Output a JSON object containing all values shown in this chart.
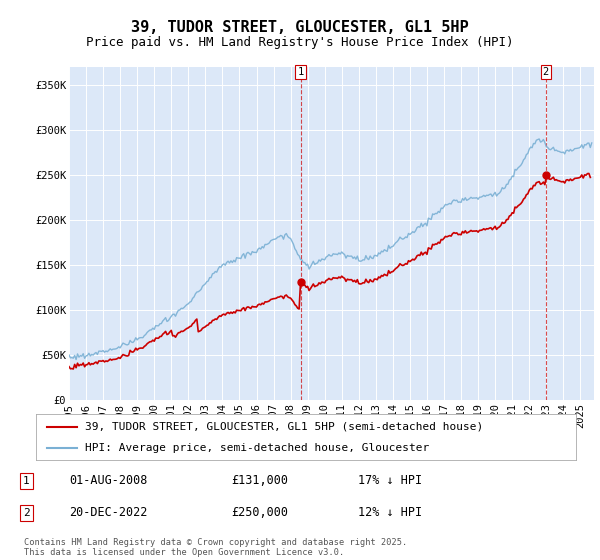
{
  "title": "39, TUDOR STREET, GLOUCESTER, GL1 5HP",
  "subtitle": "Price paid vs. HM Land Registry's House Price Index (HPI)",
  "plot_bg_color": "#dce8f8",
  "ylim": [
    0,
    370000
  ],
  "yticks": [
    0,
    50000,
    100000,
    150000,
    200000,
    250000,
    300000,
    350000
  ],
  "ytick_labels": [
    "£0",
    "£50K",
    "£100K",
    "£150K",
    "£200K",
    "£250K",
    "£300K",
    "£350K"
  ],
  "xlim_start": 1995.0,
  "xlim_end": 2025.8,
  "xticks": [
    1995,
    1996,
    1997,
    1998,
    1999,
    2000,
    2001,
    2002,
    2003,
    2004,
    2005,
    2006,
    2007,
    2008,
    2009,
    2010,
    2011,
    2012,
    2013,
    2014,
    2015,
    2016,
    2017,
    2018,
    2019,
    2020,
    2021,
    2022,
    2023,
    2024,
    2025
  ],
  "hpi_color": "#7ab0d4",
  "price_color": "#cc0000",
  "marker1_x": 2008.583,
  "marker1_y": 131000,
  "marker1_label": "1",
  "marker2_x": 2022.97,
  "marker2_y": 250000,
  "marker2_label": "2",
  "annotation1": [
    "01-AUG-2008",
    "£131,000",
    "17% ↓ HPI"
  ],
  "annotation2": [
    "20-DEC-2022",
    "£250,000",
    "12% ↓ HPI"
  ],
  "legend_line1": "39, TUDOR STREET, GLOUCESTER, GL1 5HP (semi-detached house)",
  "legend_line2": "HPI: Average price, semi-detached house, Gloucester",
  "footer": "Contains HM Land Registry data © Crown copyright and database right 2025.\nThis data is licensed under the Open Government Licence v3.0.",
  "title_fontsize": 11,
  "subtitle_fontsize": 9,
  "tick_fontsize": 7.5,
  "legend_fontsize": 8,
  "sale1_x": 1995.25,
  "sale1_y": 37500,
  "sale2_x": 1998.5,
  "sale2_y": 52000,
  "sale3_x": 2001.0,
  "sale3_y": 70000,
  "sale4_x": 2002.5,
  "sale4_y": 76000
}
